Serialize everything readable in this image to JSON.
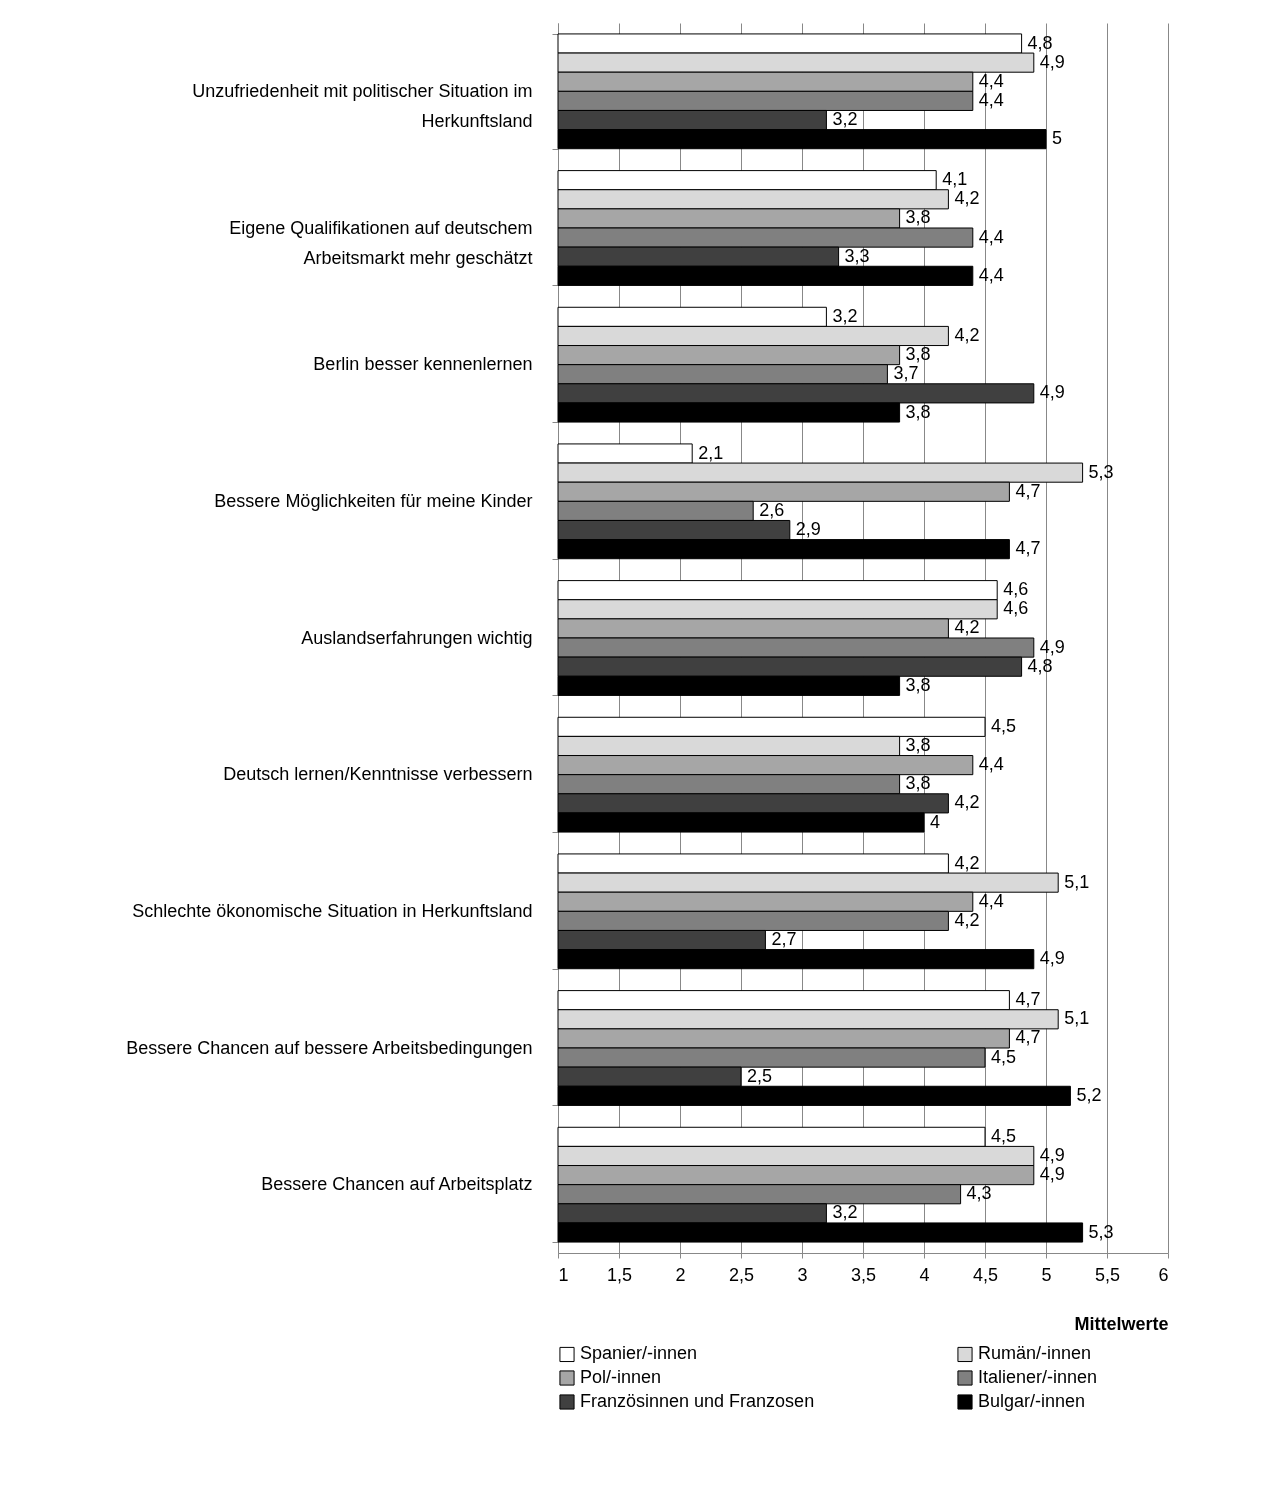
{
  "chart_data": {
    "type": "bar",
    "orientation": "horizontal",
    "xlabel": "Mittelwerte",
    "categories": [
      "Unzufriedenheit mit politischer Situation im Herkunftsland",
      "Eigene Qualifikationen auf deutschem Arbeitsmarkt mehr geschätzt",
      "Berlin besser kennenlernen",
      "Bessere Möglichkeiten für meine Kinder",
      "Auslandserfahrungen wichtig",
      "Deutsch lernen/Kenntnisse verbessern",
      "Schlechte ökonomische Situation in Herkunftsland",
      "Bessere Chancen auf bessere Arbeitsbedingungen",
      "Bessere Chancen auf Arbeitsplatz"
    ],
    "series": [
      {
        "name": "Spanier/-innen",
        "color": "#ffffff",
        "values": [
          4.8,
          4.1,
          3.2,
          2.1,
          4.6,
          4.5,
          4.2,
          4.7,
          4.5
        ],
        "value_labels": [
          "4,8",
          "4,1",
          "3,2",
          "2,1",
          "4,6",
          "4,5",
          "4,2",
          "4,7",
          "4,5"
        ]
      },
      {
        "name": "Rumän/-innen",
        "color": "#d9d9d9",
        "values": [
          4.9,
          4.2,
          4.2,
          5.3,
          4.6,
          3.8,
          5.1,
          5.1,
          4.9
        ],
        "value_labels": [
          "4,9",
          "4,2",
          "4,2",
          "5,3",
          "4,6",
          "3,8",
          "5,1",
          "5,1",
          "4,9"
        ]
      },
      {
        "name": "Pol/-innen",
        "color": "#a6a6a6",
        "values": [
          4.4,
          3.8,
          3.8,
          4.7,
          4.2,
          4.4,
          4.4,
          4.7,
          4.9
        ],
        "value_labels": [
          "4,4",
          "3,8",
          "3,8",
          "4,7",
          "4,2",
          "4,4",
          "4,4",
          "4,7",
          "4,9"
        ]
      },
      {
        "name": "Italiener/-innen",
        "color": "#808080",
        "values": [
          4.4,
          4.4,
          3.7,
          2.6,
          4.9,
          3.8,
          4.2,
          4.5,
          4.3
        ],
        "value_labels": [
          "4,4",
          "4,4",
          "3,7",
          "2,6",
          "4,9",
          "3,8",
          "4,2",
          "4,5",
          "4,3"
        ]
      },
      {
        "name": "Französinnen und Franzosen",
        "color": "#404040",
        "values": [
          3.2,
          3.3,
          4.9,
          2.9,
          4.8,
          4.2,
          2.7,
          2.5,
          3.2
        ],
        "value_labels": [
          "3,2",
          "3,3",
          "4,9",
          "2,9",
          "4,8",
          "4,2",
          "2,7",
          "2,5",
          "3,2"
        ]
      },
      {
        "name": "Bulgar/-innen",
        "color": "#000000",
        "values": [
          5,
          4.4,
          3.8,
          4.7,
          3.8,
          4,
          4.9,
          5.2,
          5.3
        ],
        "value_labels": [
          "5",
          "4,4",
          "3,8",
          "4,7",
          "3,8",
          "4",
          "4,9",
          "5,2",
          "5,3"
        ]
      }
    ],
    "xlim": [
      1,
      6
    ],
    "xticks": [
      1,
      {
        "value": 1.5,
        "label": "1,5"
      },
      2,
      {
        "value": 2.5,
        "label": "2,5"
      },
      3,
      {
        "value": 3.5,
        "label": "3,5"
      },
      4,
      {
        "value": 4.5,
        "label": "4,5"
      },
      5,
      {
        "value": 5.5,
        "label": "5,5"
      },
      6
    ],
    "grid": "x",
    "legend": "bottom"
  }
}
